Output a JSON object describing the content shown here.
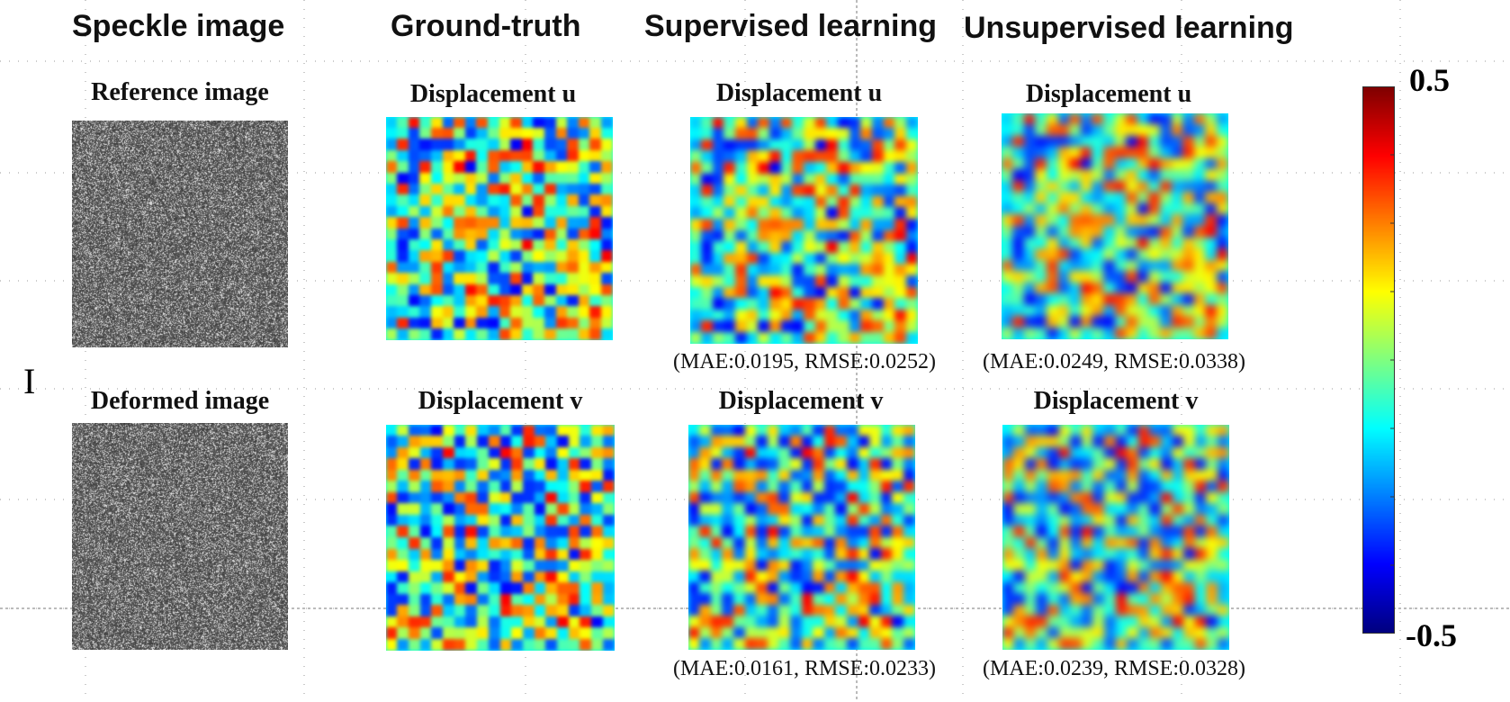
{
  "columns": {
    "speckle": "Speckle image",
    "ground_truth": "Ground-truth",
    "supervised": "Supervised learning",
    "unsupervised": "Unsupervised learning"
  },
  "speckle": {
    "reference": "Reference image",
    "deformed": "Deformed image"
  },
  "ground_truth": {
    "u": "Displacement u",
    "v": "Displacement v"
  },
  "supervised": {
    "u": "Displacement u",
    "v": "Displacement v",
    "u_metrics": "(MAE:0.0195, RMSE:0.0252)",
    "v_metrics": "(MAE:0.0161, RMSE:0.0233)"
  },
  "unsupervised": {
    "u": "Displacement u",
    "v": "Displacement v",
    "u_metrics": "(MAE:0.0249, RMSE:0.0338)",
    "v_metrics": "(MAE:0.0239, RMSE:0.0328)"
  },
  "colorbar": {
    "max_label": "0.5",
    "min_label": "-0.5",
    "colormap": "jet",
    "range": [
      -0.5,
      0.5
    ]
  },
  "cursor_glyph": "I"
}
